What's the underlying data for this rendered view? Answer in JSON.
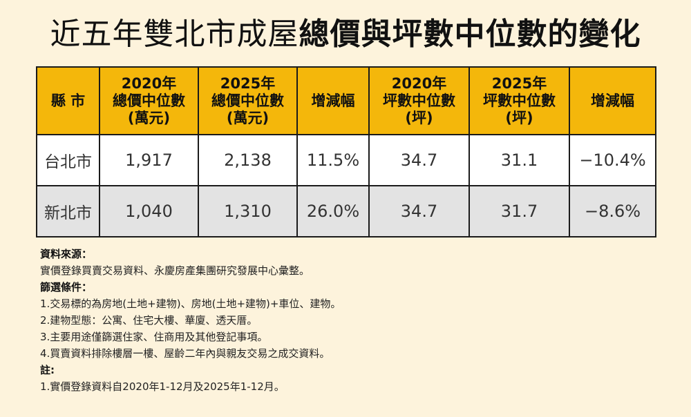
{
  "title_light": "近五年雙北市成屋",
  "title_bold": "總價與坪數中位數的變化",
  "table": {
    "headers": [
      [
        "縣 市"
      ],
      [
        "2020年",
        "總價中位數",
        "(萬元)"
      ],
      [
        "2025年",
        "總價中位數",
        "(萬元)"
      ],
      [
        "增減幅"
      ],
      [
        "2020年",
        "坪數中位數",
        "(坪)"
      ],
      [
        "2025年",
        "坪數中位數",
        "(坪)"
      ],
      [
        "增減幅"
      ]
    ],
    "rows": [
      [
        "台北市",
        "1,917",
        "2,138",
        "11.5%",
        "34.7",
        "31.1",
        "−10.4%"
      ],
      [
        "新北市",
        "1,040",
        "1,310",
        "26.0%",
        "34.7",
        "31.7",
        "−8.6%"
      ]
    ]
  },
  "colors": {
    "header_bg": "#f4b70b",
    "row_alt_bg": "#e3e3e3",
    "page_bg": "#fdf3dc"
  },
  "notes": {
    "source_heading": "資料來源：",
    "source_text": "實價登錄買賣交易資料、永慶房產集團研究發展中心彙整。",
    "criteria_heading": "篩選條件：",
    "criteria": [
      "1.交易標的為房地(土地+建物)、房地(土地+建物)+車位、建物。",
      "2.建物型態：公寓、住宅大樓、華廈、透天厝。",
      "3.主要用途僅篩選住家、住商用及其他登記事項。",
      "4.買賣資料排除樓層一樓、屋齡二年內與親友交易之成交資料。"
    ],
    "footnote_heading": "註:",
    "footnote": "1.實價登錄資料自2020年1-12月及2025年1-12月。"
  }
}
